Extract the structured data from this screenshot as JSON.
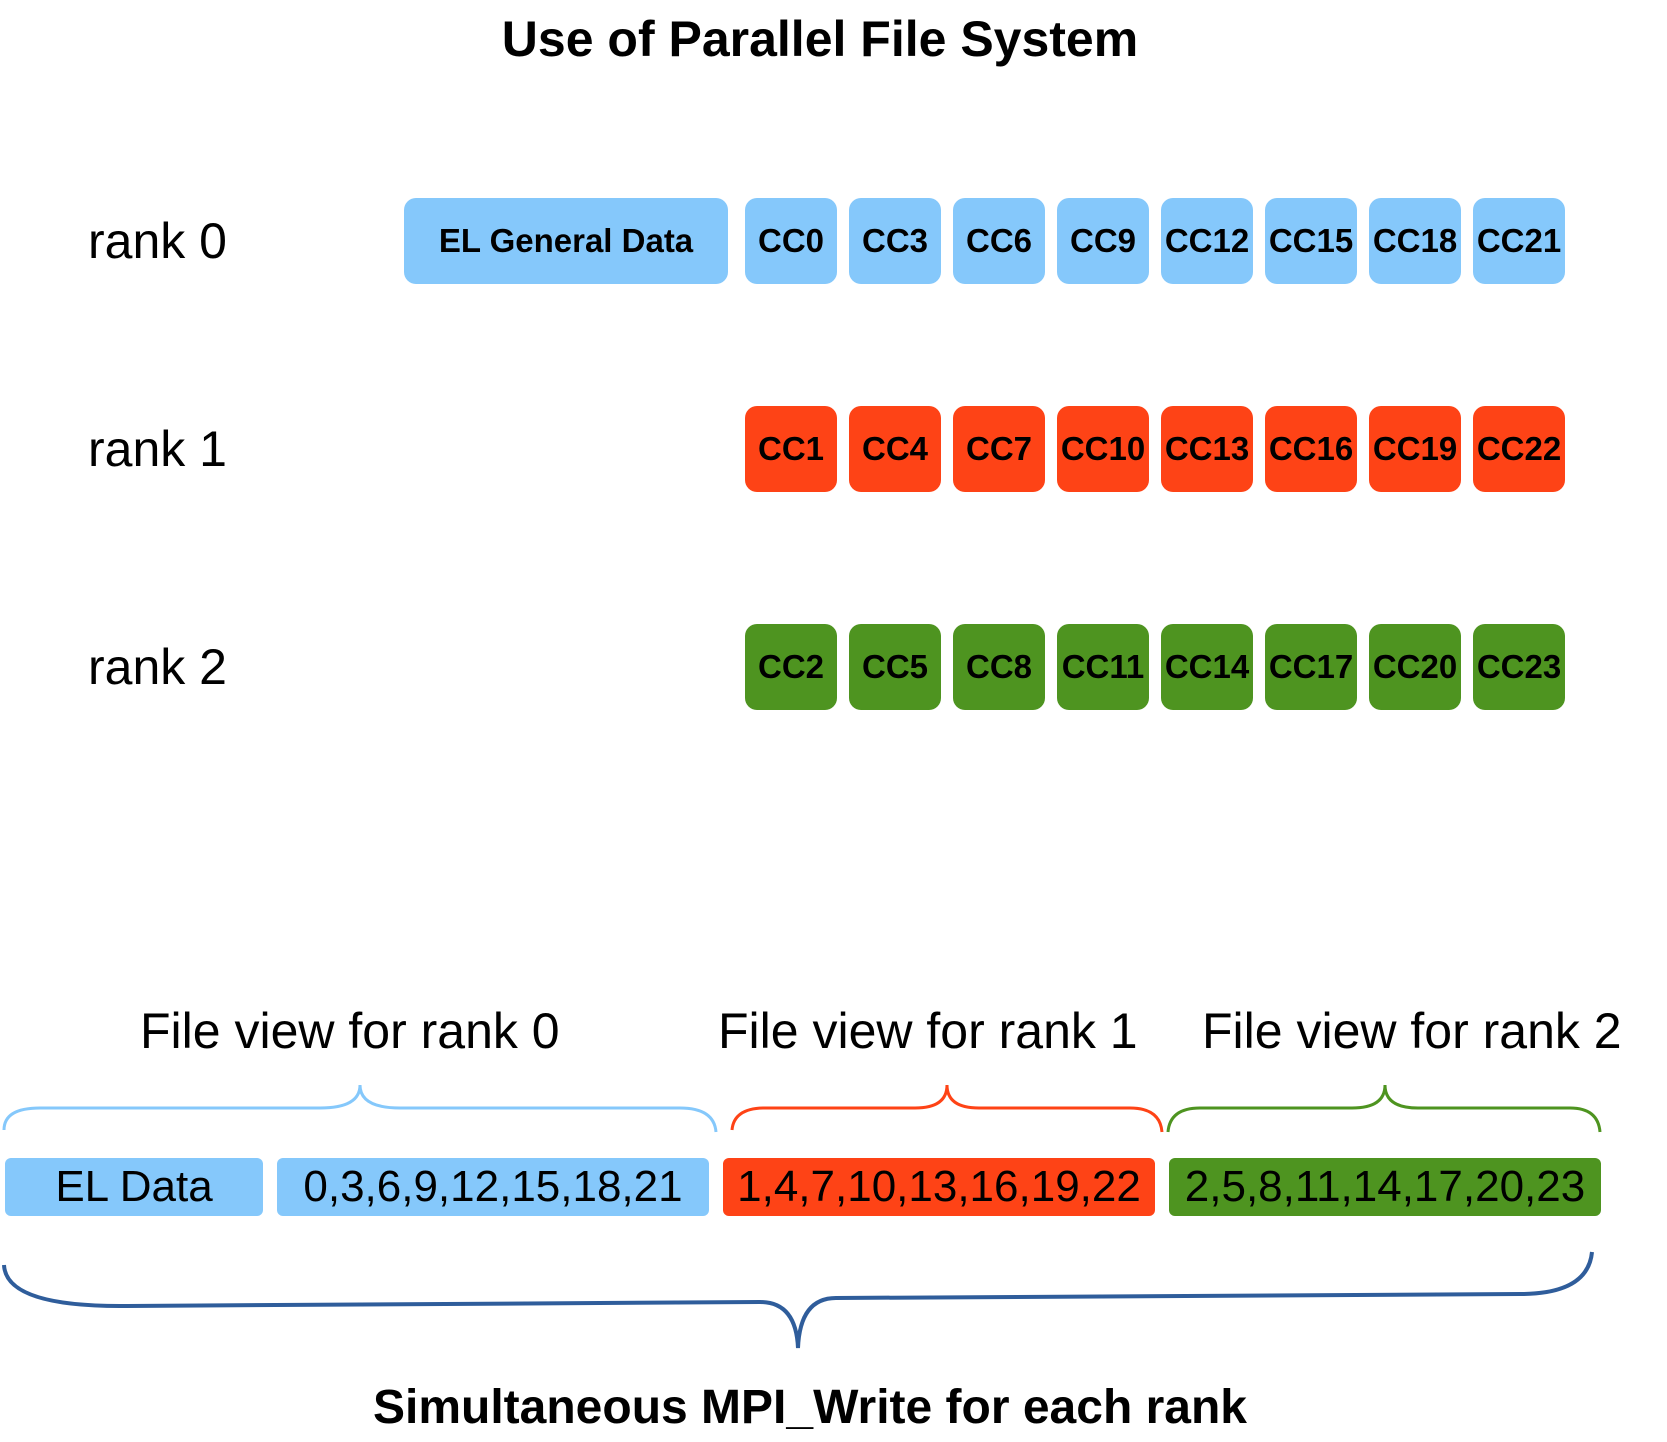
{
  "title": "Use of Parallel File System",
  "colors": {
    "rank0": "#85c8fb",
    "rank1": "#fe4316",
    "rank2": "#4e9420",
    "outer_brace": "#2f5d9b"
  },
  "ranks": [
    {
      "label": "rank 0",
      "general": "EL General Data",
      "cells": [
        "CC0",
        "CC3",
        "CC6",
        "CC9",
        "CC12",
        "CC15",
        "CC18",
        "CC21"
      ]
    },
    {
      "label": "rank 1",
      "cells": [
        "CC1",
        "CC4",
        "CC7",
        "CC10",
        "CC13",
        "CC16",
        "CC19",
        "CC22"
      ]
    },
    {
      "label": "rank 2",
      "cells": [
        "CC2",
        "CC5",
        "CC8",
        "CC11",
        "CC14",
        "CC17",
        "CC20",
        "CC23"
      ]
    }
  ],
  "file_view": {
    "labels": [
      "File view for rank 0",
      "File view for rank 1",
      "File view for rank 2"
    ],
    "segments": [
      "EL Data",
      "0,3,6,9,12,15,18,21",
      "1,4,7,10,13,16,19,22",
      "2,5,8,11,14,17,20,23"
    ]
  },
  "bottom_label": "Simultaneous MPI_Write for each rank"
}
